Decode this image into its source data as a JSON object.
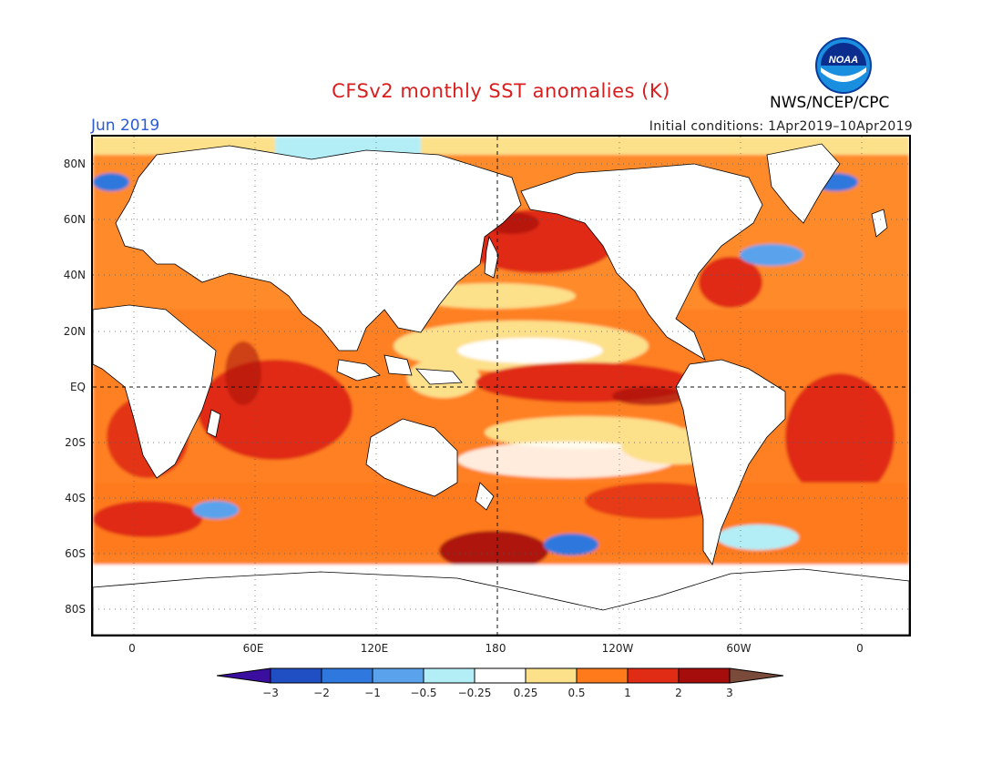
{
  "header": {
    "title": "CFSv2 monthly SST anomalies (K)",
    "month": "Jun 2019",
    "initial_conditions": "Initial conditions: 1Apr2019–10Apr2019",
    "agency": "NWS/NCEP/CPC",
    "logo_text": "NOAA"
  },
  "map": {
    "lat_labels": [
      "80N",
      "60N",
      "40N",
      "20N",
      "EQ",
      "20S",
      "40S",
      "60S",
      "80S"
    ],
    "lon_labels": [
      "0",
      "60E",
      "120E",
      "180",
      "120W",
      "60W",
      "0"
    ]
  },
  "colorbar": {
    "labels": [
      "−3",
      "−2",
      "−1",
      "−0.5",
      "−0.25",
      "0.25",
      "0.5",
      "1",
      "2",
      "3"
    ],
    "colors": [
      "#3a0fa0",
      "#1f4fc2",
      "#2f78dd",
      "#5aa3ec",
      "#b3eef6",
      "#ffffff",
      "#fde08a",
      "#ff7a1a",
      "#e02c14",
      "#a50d0d",
      "#7a4b3a"
    ]
  },
  "colors": {
    "title": "#d81e1e",
    "month": "#2a5ad6",
    "land": "#ffffff",
    "warm_mid": "#ff7a1a",
    "warm_high": "#e02c14",
    "warm_extreme": "#a50d0d",
    "cool": "#2f78dd"
  }
}
